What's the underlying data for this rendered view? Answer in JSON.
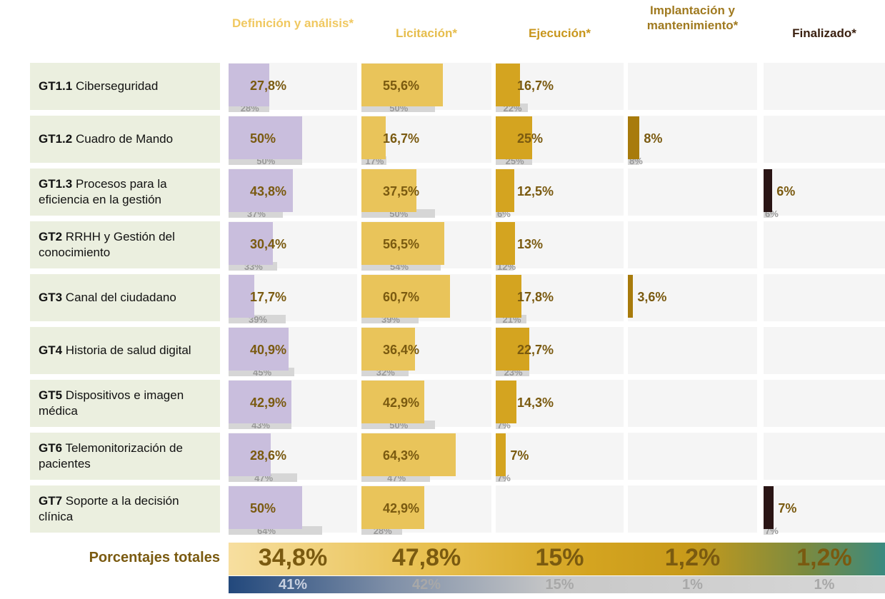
{
  "chart_data": {
    "type": "bar-grid",
    "columns": [
      "Definición y análisis*",
      "Licitación*",
      "Ejecución*",
      "Implantación y mantenimiento*",
      "Finalizado*"
    ],
    "column_colors": [
      "#f0c860",
      "#e6bd4c",
      "#c8961c",
      "#a07a20",
      "#3a2010"
    ],
    "bar_colors": [
      "#c9bedd",
      "#e9c45a",
      "#d4a420",
      "#a87b0c",
      "#2a1515"
    ],
    "previous_color": "#d6d6d6",
    "rows": [
      {
        "code": "GT1.1",
        "name": "Ciberseguridad",
        "values": [
          27.8,
          55.6,
          16.7,
          null,
          null
        ],
        "value_labels": [
          "27,8%",
          "55,6%",
          "16,7%",
          null,
          null
        ],
        "previous": [
          28,
          50,
          22,
          null,
          null
        ],
        "previous_labels": [
          "28%",
          "50%",
          "22%",
          null,
          null
        ]
      },
      {
        "code": "GT1.2",
        "name": "Cuadro de Mando",
        "values": [
          50,
          16.7,
          25,
          8,
          null
        ],
        "value_labels": [
          "50%",
          "16,7%",
          "25%",
          "8%",
          null
        ],
        "previous": [
          50,
          17,
          25,
          8,
          null
        ],
        "previous_labels": [
          "50%",
          "17%",
          "25%",
          "8%",
          null
        ]
      },
      {
        "code": "GT1.3",
        "name": "Procesos para la eficiencia en la gestión",
        "values": [
          43.8,
          37.5,
          12.5,
          null,
          6
        ],
        "value_labels": [
          "43,8%",
          "37,5%",
          "12,5%",
          null,
          "6%"
        ],
        "previous": [
          37,
          50,
          6,
          null,
          6
        ],
        "previous_labels": [
          "37%",
          "50%",
          "6%",
          null,
          "6%"
        ]
      },
      {
        "code": "GT2",
        "name": "RRHH y Gestión del conocimiento",
        "values": [
          30.4,
          56.5,
          13,
          null,
          null
        ],
        "value_labels": [
          "30,4%",
          "56,5%",
          "13%",
          null,
          null
        ],
        "previous": [
          33,
          54,
          12,
          null,
          null
        ],
        "previous_labels": [
          "33%",
          "54%",
          "12%",
          null,
          null
        ]
      },
      {
        "code": "GT3",
        "name": "Canal del ciudadano",
        "values": [
          17.7,
          60.7,
          17.8,
          3.6,
          null
        ],
        "value_labels": [
          "17,7%",
          "60,7%",
          "17,8%",
          "3,6%",
          null
        ],
        "previous": [
          39,
          39,
          21,
          null,
          null
        ],
        "previous_labels": [
          "39%",
          "39%",
          "21%",
          null,
          null
        ]
      },
      {
        "code": "GT4",
        "name": "Historia de salud digital",
        "values": [
          40.9,
          36.4,
          22.7,
          null,
          null
        ],
        "value_labels": [
          "40,9%",
          "36,4%",
          "22,7%",
          null,
          null
        ],
        "previous": [
          45,
          32,
          23,
          null,
          null
        ],
        "previous_labels": [
          "45%",
          "32%",
          "23%",
          null,
          null
        ]
      },
      {
        "code": "GT5",
        "name": "Dispositivos e imagen médica",
        "values": [
          42.9,
          42.9,
          14.3,
          null,
          null
        ],
        "value_labels": [
          "42,9%",
          "42,9%",
          "14,3%",
          null,
          null
        ],
        "previous": [
          43,
          50,
          7,
          null,
          null
        ],
        "previous_labels": [
          "43%",
          "50%",
          "7%",
          null,
          null
        ]
      },
      {
        "code": "GT6",
        "name": "Telemonitorización de pacientes",
        "values": [
          28.6,
          64.3,
          7,
          null,
          null
        ],
        "value_labels": [
          "28,6%",
          "64,3%",
          "7%",
          null,
          null
        ],
        "previous": [
          47,
          47,
          7,
          null,
          null
        ],
        "previous_labels": [
          "47%",
          "47%",
          "7%",
          null,
          null
        ]
      },
      {
        "code": "GT7",
        "name": "Soporte a la decisión clínica",
        "values": [
          50,
          42.9,
          null,
          null,
          7
        ],
        "value_labels": [
          "50%",
          "42,9%",
          null,
          null,
          "7%"
        ],
        "previous": [
          64,
          28,
          null,
          null,
          7
        ],
        "previous_labels": [
          "64%",
          "28%",
          null,
          null,
          "7%"
        ]
      }
    ],
    "totals": {
      "label": "Porcentajes totales",
      "values": [
        34.8,
        47.8,
        15,
        1.2,
        1.2
      ],
      "value_labels": [
        "34,8%",
        "47,8%",
        "15%",
        "1,2%",
        "1,2%"
      ],
      "previous": [
        41,
        42,
        15,
        1,
        1
      ],
      "previous_labels": [
        "41%",
        "42%",
        "15%",
        "1%",
        "1%"
      ]
    }
  }
}
